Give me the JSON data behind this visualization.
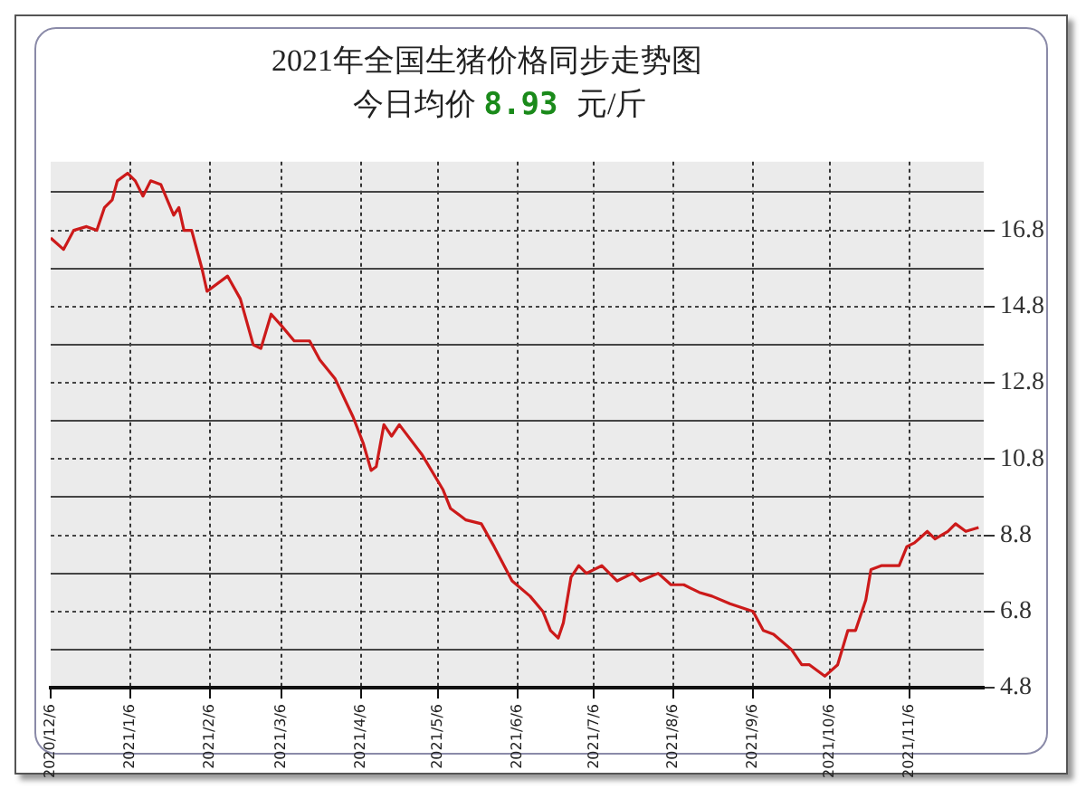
{
  "chart_data": {
    "type": "line",
    "title": "2021年全国生猪价格同步走势图",
    "subtitle": "今日均价 8.93 元/斤",
    "x": [
      "2020-12-06",
      "2020-12-11",
      "2020-12-15",
      "2020-12-20",
      "2020-12-24",
      "2020-12-27",
      "2020-12-30",
      "2021-01-01",
      "2021-01-05",
      "2021-01-08",
      "2021-01-11",
      "2021-01-14",
      "2021-01-18",
      "2021-01-23",
      "2021-01-25",
      "2021-01-27",
      "2021-01-30",
      "2021-02-03",
      "2021-02-05",
      "2021-02-13",
      "2021-02-18",
      "2021-02-23",
      "2021-02-26",
      "2021-03-02",
      "2021-03-06",
      "2021-03-11",
      "2021-03-17",
      "2021-03-21",
      "2021-03-27",
      "2021-04-03",
      "2021-04-07",
      "2021-04-10",
      "2021-04-12",
      "2021-04-15",
      "2021-04-18",
      "2021-04-21",
      "2021-04-30",
      "2021-05-08",
      "2021-05-11",
      "2021-05-17",
      "2021-05-23",
      "2021-05-28",
      "2021-06-04",
      "2021-06-11",
      "2021-06-16",
      "2021-06-19",
      "2021-06-22",
      "2021-06-24",
      "2021-06-27",
      "2021-06-30",
      "2021-07-03",
      "2021-07-09",
      "2021-07-15",
      "2021-07-21",
      "2021-07-24",
      "2021-07-31",
      "2021-08-05",
      "2021-08-10",
      "2021-08-16",
      "2021-08-21",
      "2021-08-28",
      "2021-09-06",
      "2021-09-10",
      "2021-09-14",
      "2021-09-21",
      "2021-09-25",
      "2021-09-28",
      "2021-10-04",
      "2021-10-09",
      "2021-10-13",
      "2021-10-16",
      "2021-10-20",
      "2021-10-22",
      "2021-10-26",
      "2021-11-02",
      "2021-11-05",
      "2021-11-08",
      "2021-11-13",
      "2021-11-16",
      "2021-11-21",
      "2021-11-24",
      "2021-11-28",
      "2021-12-03"
    ],
    "series": [
      {
        "color": "#cc1a1a",
        "values": [
          16.6,
          16.3,
          16.8,
          16.9,
          16.8,
          17.4,
          17.6,
          18.1,
          18.3,
          18.1,
          17.7,
          18.1,
          18.0,
          17.2,
          17.4,
          16.8,
          16.8,
          15.8,
          15.2,
          15.6,
          15.0,
          13.8,
          13.7,
          14.6,
          14.3,
          13.9,
          13.9,
          13.4,
          12.9,
          11.9,
          11.2,
          10.5,
          10.6,
          11.7,
          11.4,
          11.7,
          10.9,
          10.0,
          9.5,
          9.2,
          9.1,
          8.5,
          7.6,
          7.2,
          6.8,
          6.3,
          6.1,
          6.5,
          7.7,
          8.0,
          7.8,
          8.0,
          7.6,
          7.8,
          7.6,
          7.8,
          7.5,
          7.5,
          7.3,
          7.2,
          7.0,
          6.8,
          6.3,
          6.2,
          5.8,
          5.4,
          5.4,
          5.1,
          5.4,
          6.3,
          6.3,
          7.1,
          7.9,
          8.0,
          8.0,
          8.5,
          8.6,
          8.9,
          8.7,
          8.9,
          9.1,
          8.9,
          9.0
        ]
      }
    ],
    "xlim": [
      "2020-12-06",
      "2021-12-05"
    ],
    "xticks": [
      {
        "value": "2020-12-06",
        "label": "2020/12/6"
      },
      {
        "value": "2021-01-06",
        "label": "2021/1/6"
      },
      {
        "value": "2021-02-06",
        "label": "2021/2/6"
      },
      {
        "value": "2021-03-06",
        "label": "2021/3/6"
      },
      {
        "value": "2021-04-06",
        "label": "2021/4/6"
      },
      {
        "value": "2021-05-06",
        "label": "2021/5/6"
      },
      {
        "value": "2021-06-06",
        "label": "2021/6/6"
      },
      {
        "value": "2021-07-06",
        "label": "2021/7/6"
      },
      {
        "value": "2021-08-06",
        "label": "2021/8/6"
      },
      {
        "value": "2021-09-06",
        "label": "2021/9/6"
      },
      {
        "value": "2021-10-06",
        "label": "2021/10/6"
      },
      {
        "value": "2021-11-06",
        "label": "2021/11/6"
      }
    ],
    "ylim": [
      4.8,
      18.6
    ],
    "yticks": [
      4.8,
      {
        "value": 5.8,
        "label": null
      },
      6.8,
      {
        "value": 7.8,
        "label": null
      },
      8.8,
      {
        "value": 9.8,
        "label": null
      },
      10.8,
      {
        "value": 11.8,
        "label": null
      },
      12.8,
      {
        "value": 13.8,
        "label": null
      },
      14.8,
      {
        "value": 15.8,
        "label": null
      },
      16.8,
      {
        "value": 17.8,
        "label": null
      }
    ],
    "grid": true,
    "legend": false,
    "marker": "none",
    "line_style": "solid"
  }
}
